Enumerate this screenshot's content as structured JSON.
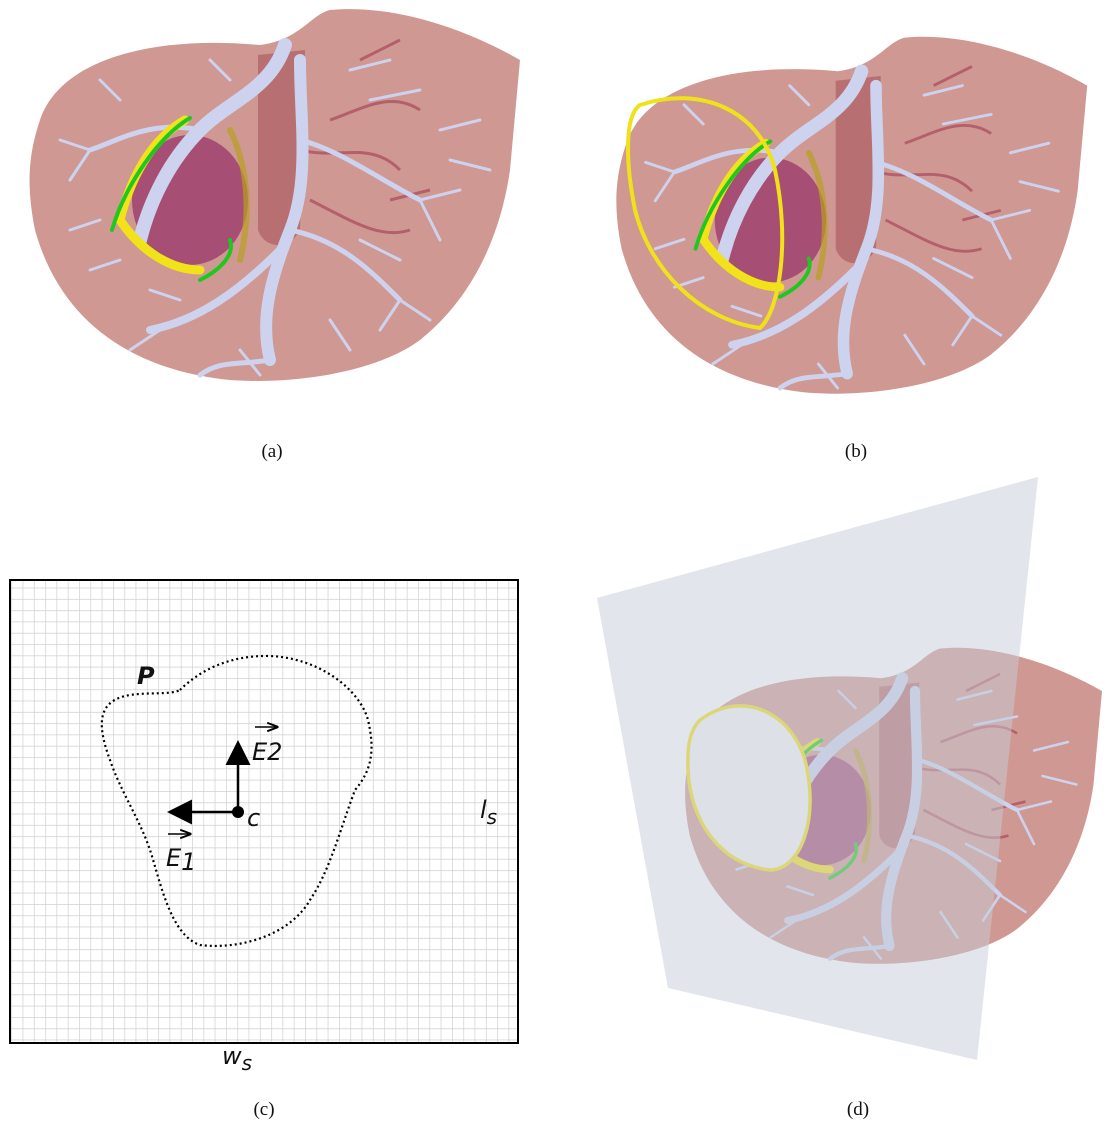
{
  "panels": [
    {
      "caption": "(a)"
    },
    {
      "caption": "(b)"
    },
    {
      "caption": "(c)"
    },
    {
      "caption": "(d)"
    }
  ],
  "diagram": {
    "polygon_label": "P",
    "center_label": "c",
    "axis_1": {
      "base": "E",
      "subscript": "1"
    },
    "axis_2": {
      "base": "E",
      "subscript": "2"
    },
    "length_label": {
      "base": "l",
      "subscript": "s"
    },
    "width_label": {
      "base": "w",
      "subscript": "s"
    }
  }
}
